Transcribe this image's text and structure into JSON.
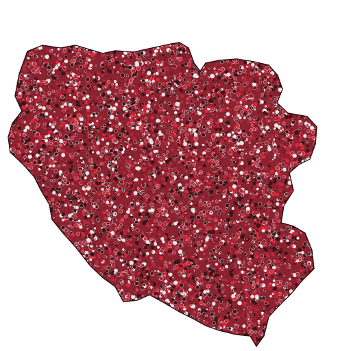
{
  "scene": {
    "background_color": "#ffffff",
    "subject": "molecular-surface-render",
    "palette": {
      "primary": "#b0283a",
      "dark": "#3a1418",
      "deep_red": "#7e1c26",
      "bright_red": "#d8283a",
      "highlight": "#e8e4e4",
      "outline": "#1a0c0c"
    }
  }
}
